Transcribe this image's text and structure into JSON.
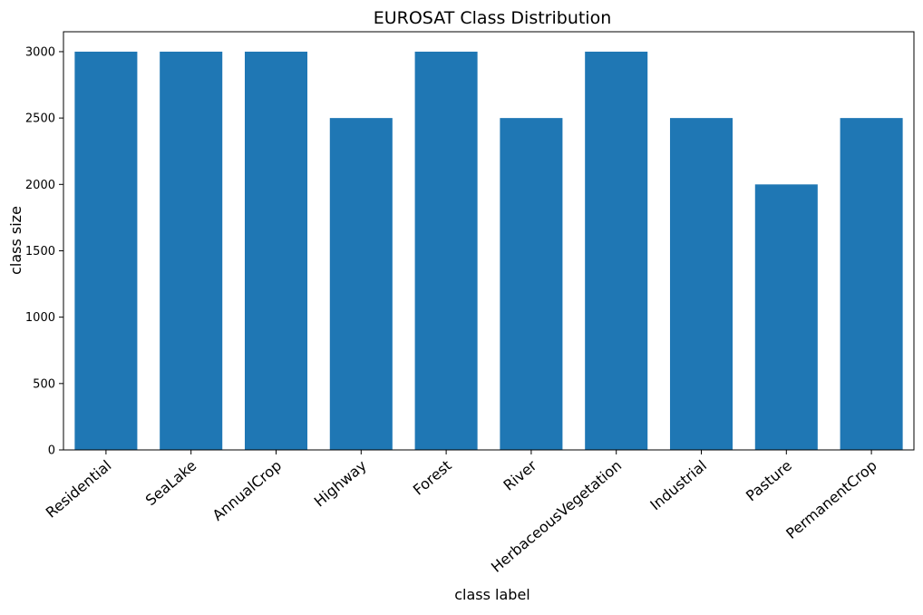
{
  "chart_data": {
    "type": "bar",
    "title": "EUROSAT Class Distribution",
    "xlabel": "class label",
    "ylabel": "class size",
    "categories": [
      "Residential",
      "SeaLake",
      "AnnualCrop",
      "Highway",
      "Forest",
      "River",
      "HerbaceousVegetation",
      "Industrial",
      "Pasture",
      "PermanentCrop"
    ],
    "values": [
      3000,
      3000,
      3000,
      2500,
      3000,
      2500,
      3000,
      2500,
      2000,
      2500
    ],
    "ylim": [
      0,
      3150
    ],
    "yticks": [
      0,
      500,
      1000,
      1500,
      2000,
      2500,
      3000
    ],
    "bar_color": "#1f77b4",
    "grid": false,
    "legend": "none"
  }
}
